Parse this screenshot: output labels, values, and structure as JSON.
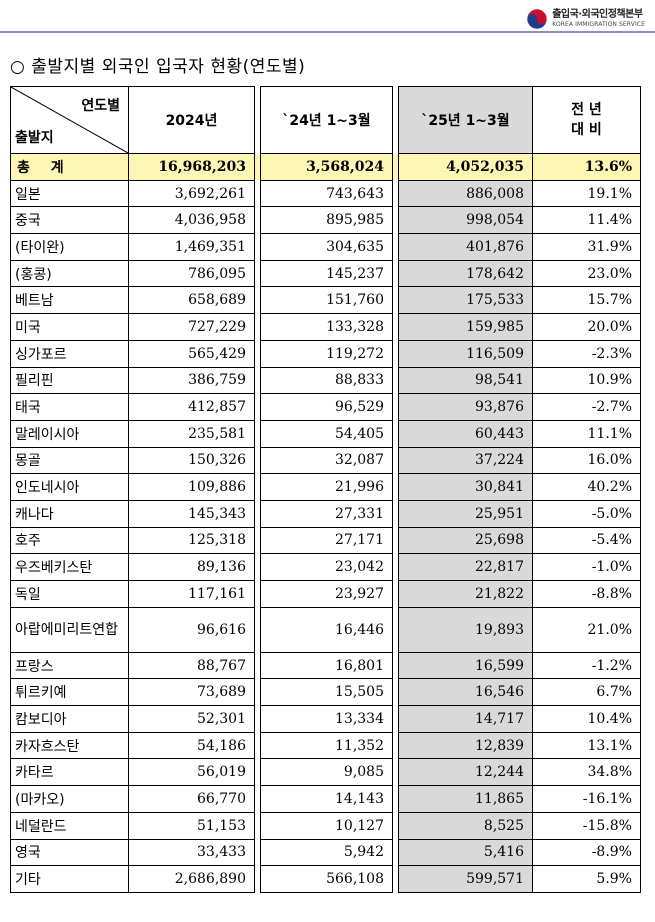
{
  "header": {
    "org_ko": "출입국·외국인정책본부",
    "org_en": "KOREA IMMIGRATION SERVICE",
    "logo_icon": "taegeuk-logo-icon"
  },
  "title": "○ 출발지별 외국인 입국자 현황(연도별)",
  "table": {
    "corner_top": "연도별",
    "corner_bottom": "출발지",
    "columns": [
      "2024년",
      "`24년 1~3월",
      "`25년 1~3월",
      "전 년",
      "대 비"
    ],
    "total": {
      "name": "총 계",
      "v2024": "16,968,203",
      "q24": "3,568,024",
      "q25": "4,052,035",
      "change": "13.6%"
    },
    "rows": [
      {
        "name": "일본",
        "v2024": "3,692,261",
        "q24": "743,643",
        "q25": "886,008",
        "change": "19.1%"
      },
      {
        "name": "중국",
        "v2024": "4,036,958",
        "q24": "895,985",
        "q25": "998,054",
        "change": "11.4%"
      },
      {
        "name": "(타이완)",
        "v2024": "1,469,351",
        "q24": "304,635",
        "q25": "401,876",
        "change": "31.9%"
      },
      {
        "name": "(홍콩)",
        "v2024": "786,095",
        "q24": "145,237",
        "q25": "178,642",
        "change": "23.0%"
      },
      {
        "name": "베트남",
        "v2024": "658,689",
        "q24": "151,760",
        "q25": "175,533",
        "change": "15.7%"
      },
      {
        "name": "미국",
        "v2024": "727,229",
        "q24": "133,328",
        "q25": "159,985",
        "change": "20.0%"
      },
      {
        "name": "싱가포르",
        "v2024": "565,429",
        "q24": "119,272",
        "q25": "116,509",
        "change": "-2.3%"
      },
      {
        "name": "필리핀",
        "v2024": "386,759",
        "q24": "88,833",
        "q25": "98,541",
        "change": "10.9%"
      },
      {
        "name": "태국",
        "v2024": "412,857",
        "q24": "96,529",
        "q25": "93,876",
        "change": "-2.7%"
      },
      {
        "name": "말레이시아",
        "v2024": "235,581",
        "q24": "54,405",
        "q25": "60,443",
        "change": "11.1%"
      },
      {
        "name": "몽골",
        "v2024": "150,326",
        "q24": "32,087",
        "q25": "37,224",
        "change": "16.0%"
      },
      {
        "name": "인도네시아",
        "v2024": "109,886",
        "q24": "21,996",
        "q25": "30,841",
        "change": "40.2%"
      },
      {
        "name": "캐나다",
        "v2024": "145,343",
        "q24": "27,331",
        "q25": "25,951",
        "change": "-5.0%"
      },
      {
        "name": "호주",
        "v2024": "125,318",
        "q24": "27,171",
        "q25": "25,698",
        "change": "-5.4%"
      },
      {
        "name": "우즈베키스탄",
        "v2024": "89,136",
        "q24": "23,042",
        "q25": "22,817",
        "change": "-1.0%"
      },
      {
        "name": "독일",
        "v2024": "117,161",
        "q24": "23,927",
        "q25": "21,822",
        "change": "-8.8%"
      },
      {
        "name": "아랍에미리트연합",
        "v2024": "96,616",
        "q24": "16,446",
        "q25": "19,893",
        "change": "21.0%",
        "wrap": true
      },
      {
        "name": "프랑스",
        "v2024": "88,767",
        "q24": "16,801",
        "q25": "16,599",
        "change": "-1.2%"
      },
      {
        "name": "튀르키예",
        "v2024": "73,689",
        "q24": "15,505",
        "q25": "16,546",
        "change": "6.7%"
      },
      {
        "name": "캄보디아",
        "v2024": "52,301",
        "q24": "13,334",
        "q25": "14,717",
        "change": "10.4%"
      },
      {
        "name": "카자흐스탄",
        "v2024": "54,186",
        "q24": "11,352",
        "q25": "12,839",
        "change": "13.1%"
      },
      {
        "name": "카타르",
        "v2024": "56,019",
        "q24": "9,085",
        "q25": "12,244",
        "change": "34.8%"
      },
      {
        "name": "(마카오)",
        "v2024": "66,770",
        "q24": "14,143",
        "q25": "11,865",
        "change": "-16.1%"
      },
      {
        "name": "네덜란드",
        "v2024": "51,153",
        "q24": "10,127",
        "q25": "8,525",
        "change": "-15.8%"
      },
      {
        "name": "영국",
        "v2024": "33,433",
        "q24": "5,942",
        "q25": "5,416",
        "change": "-8.9%"
      },
      {
        "name": "기타",
        "v2024": "2,686,890",
        "q24": "566,108",
        "q25": "599,571",
        "change": "5.9%"
      }
    ]
  }
}
